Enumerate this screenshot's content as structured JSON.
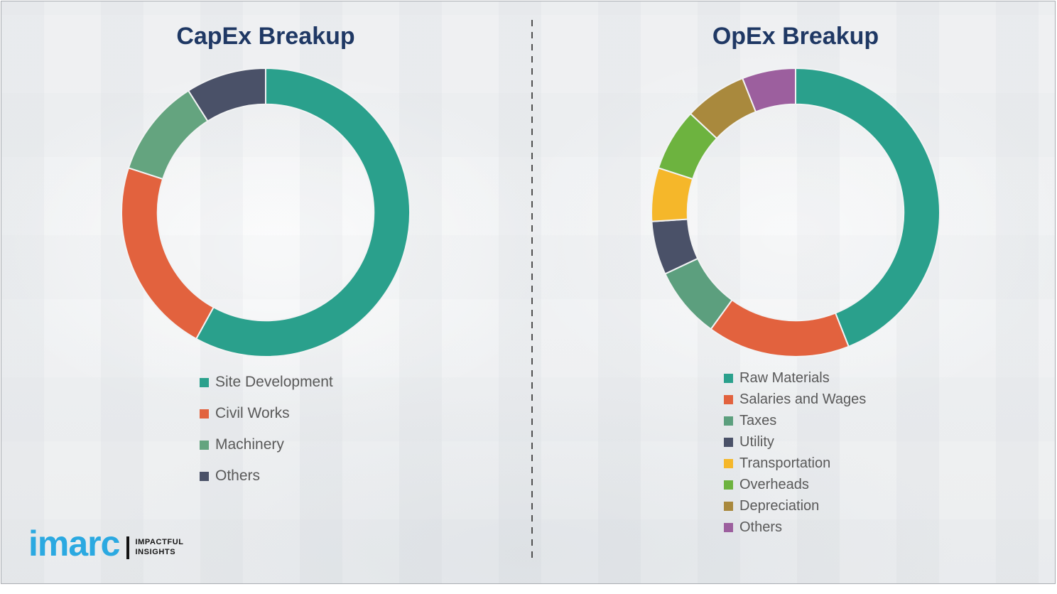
{
  "page": {
    "background_color": "#edeff1",
    "frame_border_color": "#a9adb2",
    "divider_style": "dashed-vertical",
    "divider_color": "#4f4f4f",
    "title_color": "#1F3864",
    "legend_text_color": "#595959"
  },
  "branding": {
    "logo_text": "imarc",
    "logo_color": "#2BA9E1",
    "tagline_line1": "IMPACTFUL",
    "tagline_line2": "INSIGHTS"
  },
  "chart_data": [
    {
      "type": "pie",
      "subtype": "donut",
      "title": "CapEx Breakup",
      "start_angle_deg": 0,
      "direction": "clockwise",
      "inner_radius_ratio": 0.75,
      "legend_position": "below-left",
      "categories": [
        "Site Development",
        "Civil Works",
        "Machinery",
        "Others"
      ],
      "values": [
        58,
        22,
        11,
        9
      ],
      "colors": [
        "#2AA08C",
        "#E2623E",
        "#64A47F",
        "#4A5168"
      ]
    },
    {
      "type": "pie",
      "subtype": "donut",
      "title": "OpEx Breakup",
      "start_angle_deg": 0,
      "direction": "clockwise",
      "inner_radius_ratio": 0.75,
      "legend_position": "below-left",
      "categories": [
        "Raw Materials",
        "Salaries and Wages",
        "Taxes",
        "Utility",
        "Transportation",
        "Overheads",
        "Depreciation",
        "Others"
      ],
      "values": [
        44,
        16,
        8,
        6,
        6,
        7,
        7,
        6
      ],
      "colors": [
        "#2AA08C",
        "#E2623E",
        "#5C9F7E",
        "#4A5168",
        "#F5B72A",
        "#6DB33F",
        "#A9893D",
        "#9C5F9E"
      ]
    }
  ]
}
